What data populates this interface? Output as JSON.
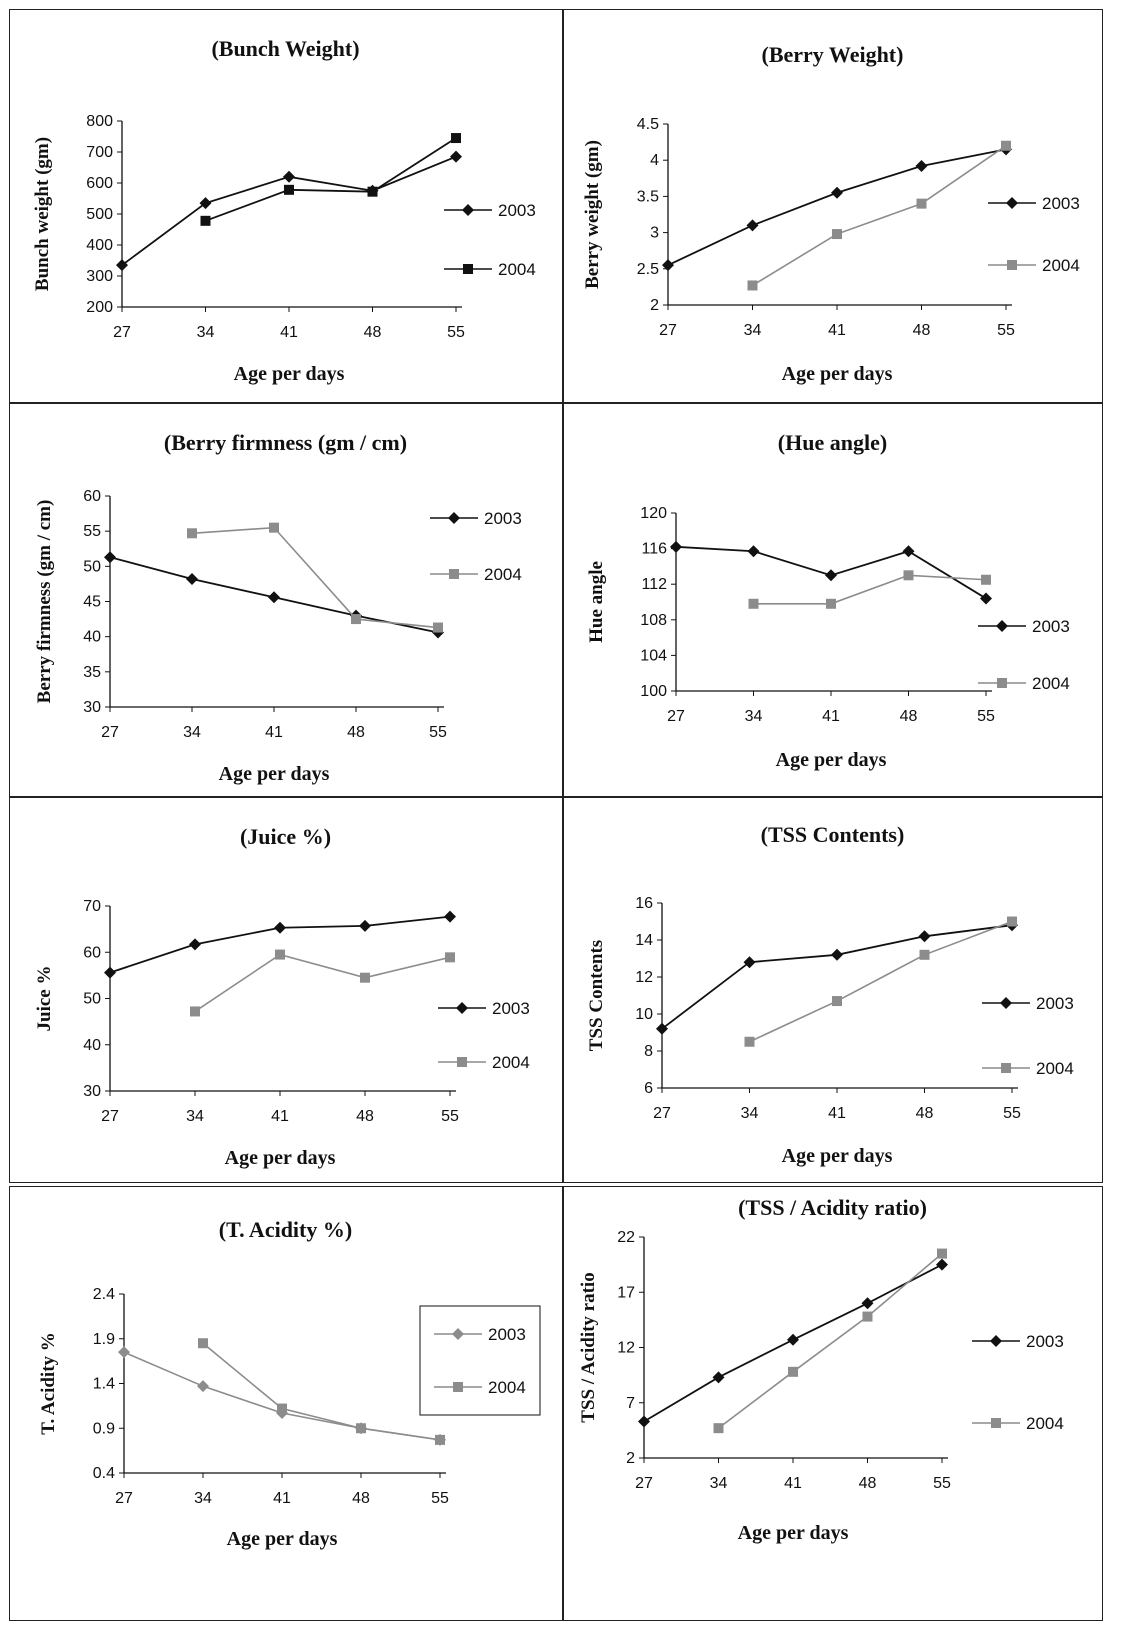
{
  "colors": {
    "series_2003": "#111111",
    "series_2004": "#8c8c8c",
    "border": "#222222"
  },
  "chart_data": [
    {
      "type": "line",
      "title": "(Bunch Weight)",
      "xlabel": "Age per days",
      "ylabel": "Bunch weight (gm)",
      "categories": [
        "27",
        "34",
        "41",
        "48",
        "55"
      ],
      "yticks": [
        "200",
        "300",
        "400",
        "500",
        "600",
        "700",
        "800"
      ],
      "ylim": [
        200,
        800
      ],
      "series": [
        {
          "name": "2003",
          "values": [
            335,
            535,
            620,
            575,
            685
          ],
          "color": "#111111",
          "marker": "diamond"
        },
        {
          "name": "2004",
          "values": [
            null,
            478,
            578,
            572,
            745
          ],
          "color": "#111111",
          "marker": "square"
        }
      ]
    },
    {
      "type": "line",
      "title": "(Berry Weight)",
      "xlabel": "Age per days",
      "ylabel": "Berry weight (gm)",
      "categories": [
        "27",
        "34",
        "41",
        "48",
        "55"
      ],
      "yticks": [
        "2",
        "2.5",
        "3",
        "3.5",
        "4",
        "4.5"
      ],
      "ylim": [
        2,
        4.5
      ],
      "series": [
        {
          "name": "2003",
          "values": [
            2.55,
            3.1,
            3.55,
            3.92,
            4.15
          ],
          "color": "#111111",
          "marker": "diamond"
        },
        {
          "name": "2004",
          "values": [
            null,
            2.27,
            2.98,
            3.4,
            4.2
          ],
          "color": "#8c8c8c",
          "marker": "square"
        }
      ]
    },
    {
      "type": "line",
      "title": "(Berry firmness  (gm / cm)",
      "xlabel": "Age per days",
      "ylabel": "Berry firmness (gm / cm)",
      "categories": [
        "27",
        "34",
        "41",
        "48",
        "55"
      ],
      "yticks": [
        "30",
        "35",
        "40",
        "45",
        "50",
        "55",
        "60"
      ],
      "ylim": [
        30,
        60
      ],
      "series": [
        {
          "name": "2003",
          "values": [
            51.3,
            48.2,
            45.6,
            43.0,
            40.6
          ],
          "color": "#111111",
          "marker": "diamond"
        },
        {
          "name": "2004",
          "values": [
            null,
            54.7,
            55.5,
            42.5,
            41.3
          ],
          "color": "#8c8c8c",
          "marker": "square"
        }
      ]
    },
    {
      "type": "line",
      "title": "(Hue angle)",
      "xlabel": "Age per days",
      "ylabel": "Hue angle",
      "categories": [
        "27",
        "34",
        "41",
        "48",
        "55"
      ],
      "yticks": [
        "100",
        "104",
        "108",
        "112",
        "116",
        "120"
      ],
      "ylim": [
        100,
        120
      ],
      "series": [
        {
          "name": "2003",
          "values": [
            116.2,
            115.7,
            113.0,
            115.7,
            110.4
          ],
          "color": "#111111",
          "marker": "diamond"
        },
        {
          "name": "2004",
          "values": [
            null,
            109.8,
            109.8,
            113.0,
            112.5
          ],
          "color": "#8c8c8c",
          "marker": "square"
        }
      ]
    },
    {
      "type": "line",
      "title": "(Juice %)",
      "xlabel": "Age per days",
      "ylabel": "Juice %",
      "categories": [
        "27",
        "34",
        "41",
        "48",
        "55"
      ],
      "yticks": [
        "30",
        "40",
        "50",
        "60",
        "70"
      ],
      "ylim": [
        30,
        70
      ],
      "series": [
        {
          "name": "2003",
          "values": [
            55.6,
            61.7,
            65.3,
            65.7,
            67.7
          ],
          "color": "#111111",
          "marker": "diamond"
        },
        {
          "name": "2004",
          "values": [
            null,
            47.2,
            59.5,
            54.5,
            58.9
          ],
          "color": "#8c8c8c",
          "marker": "square"
        }
      ]
    },
    {
      "type": "line",
      "title": "(TSS   Contents)",
      "xlabel": "Age per days",
      "ylabel": "TSS Contents",
      "categories": [
        "27",
        "34",
        "41",
        "48",
        "55"
      ],
      "yticks": [
        "6",
        "8",
        "10",
        "12",
        "14",
        "16"
      ],
      "ylim": [
        6,
        16
      ],
      "series": [
        {
          "name": "2003",
          "values": [
            9.2,
            12.8,
            13.2,
            14.2,
            14.8
          ],
          "color": "#111111",
          "marker": "diamond"
        },
        {
          "name": "2004",
          "values": [
            null,
            8.5,
            10.7,
            13.2,
            15.0
          ],
          "color": "#8c8c8c",
          "marker": "square"
        }
      ]
    },
    {
      "type": "line",
      "title": "(T. Acidity %)",
      "xlabel": "Age per days",
      "ylabel": "T. Acidity %",
      "categories": [
        "27",
        "34",
        "41",
        "48",
        "55"
      ],
      "yticks": [
        "0.4",
        "0.9",
        "1.4",
        "1.9",
        "2.4"
      ],
      "ylim": [
        0.4,
        2.4
      ],
      "series": [
        {
          "name": "2003",
          "values": [
            1.75,
            1.37,
            1.07,
            0.9,
            0.77
          ],
          "color": "#8c8c8c",
          "marker": "diamond"
        },
        {
          "name": "2004",
          "values": [
            null,
            1.85,
            1.12,
            0.9,
            0.77
          ],
          "color": "#8c8c8c",
          "marker": "square"
        }
      ]
    },
    {
      "type": "line",
      "title": "(TSS / Acidity ratio)",
      "xlabel": "Age per days",
      "ylabel": "TSS / Acidity ratio",
      "categories": [
        "27",
        "34",
        "41",
        "48",
        "55"
      ],
      "yticks": [
        "2",
        "7",
        "12",
        "17",
        "22"
      ],
      "ylim": [
        2,
        22
      ],
      "series": [
        {
          "name": "2003",
          "values": [
            5.3,
            9.3,
            12.7,
            16.0,
            19.5
          ],
          "color": "#111111",
          "marker": "diamond"
        },
        {
          "name": "2004",
          "values": [
            null,
            4.7,
            9.8,
            14.8,
            20.5
          ],
          "color": "#8c8c8c",
          "marker": "square"
        }
      ]
    }
  ]
}
